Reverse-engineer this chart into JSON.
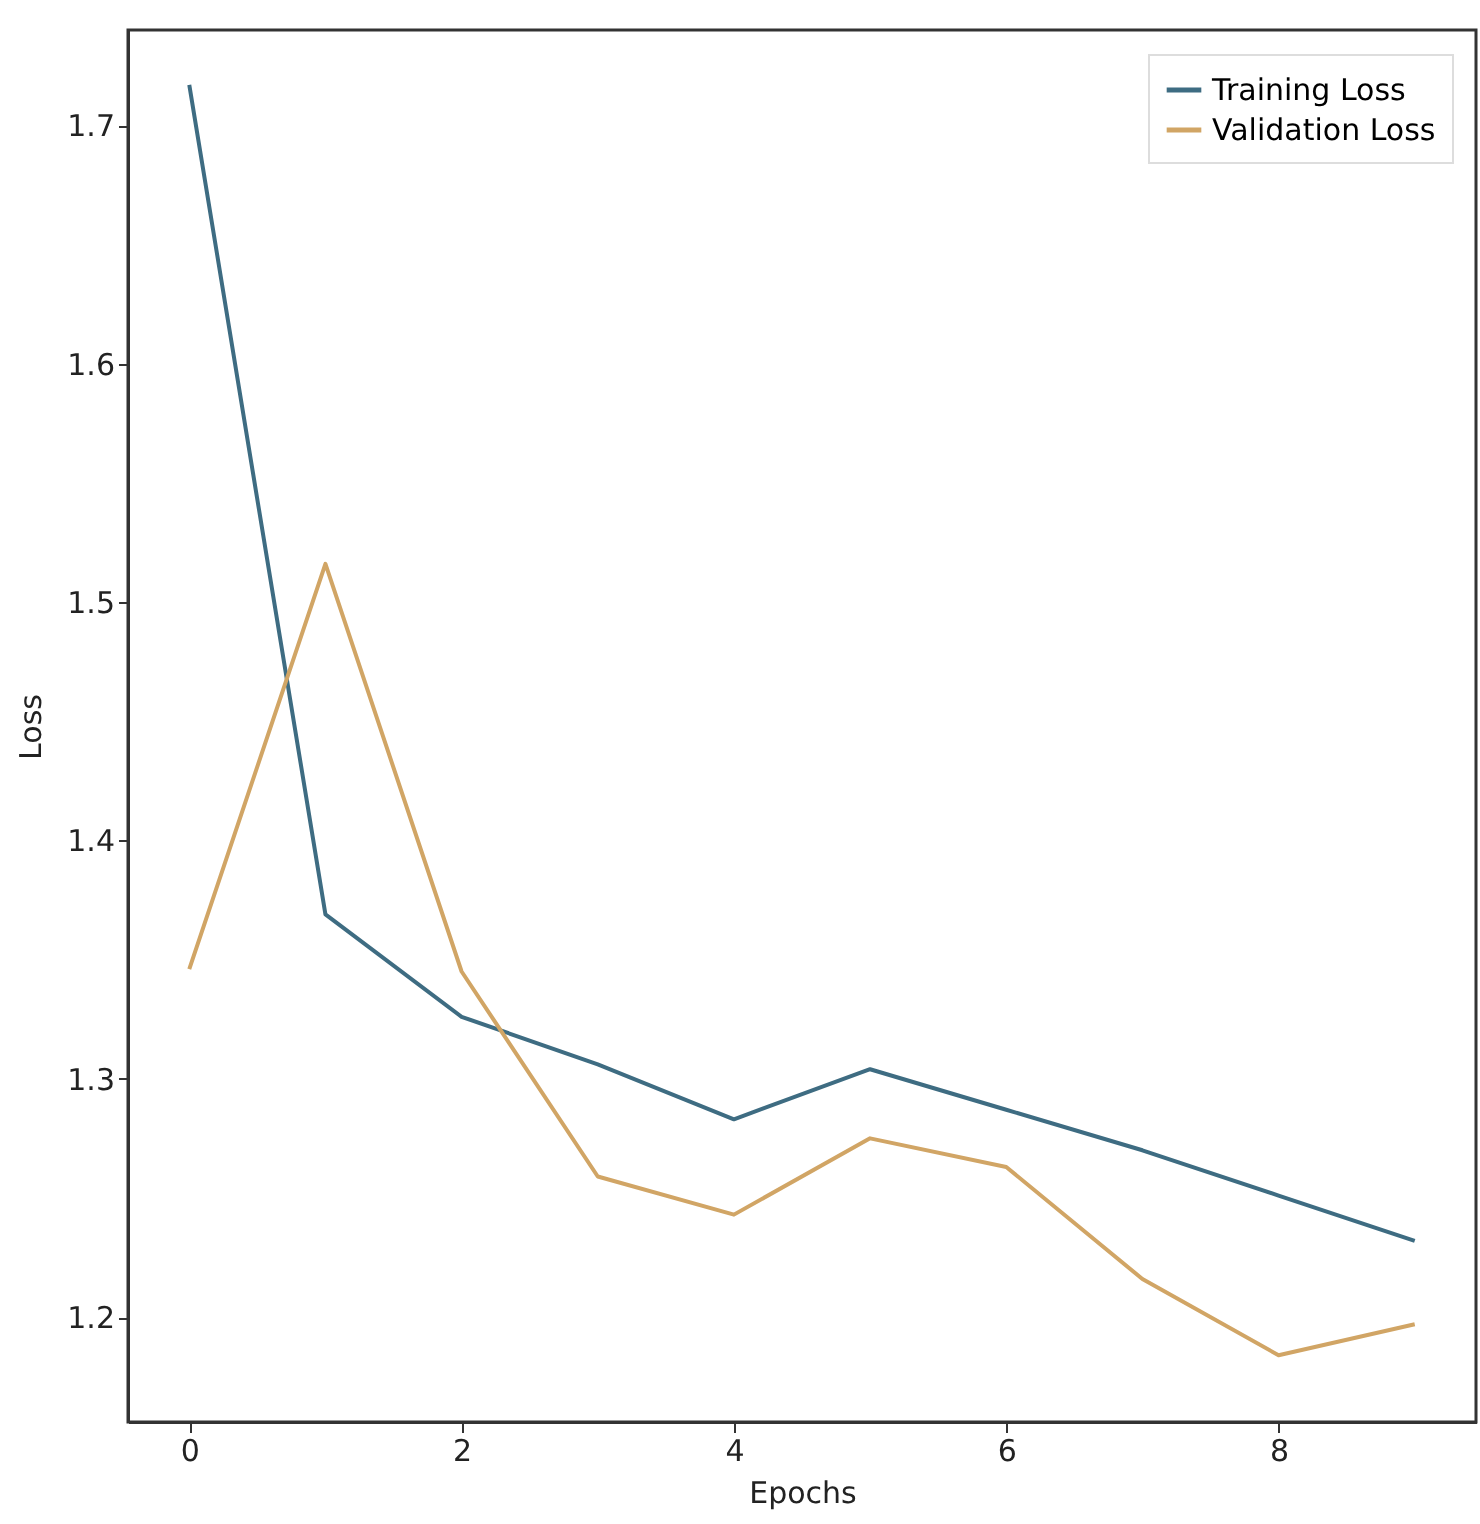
{
  "chart_data": {
    "type": "line",
    "xlabel": "Epochs",
    "ylabel": "Loss",
    "x": [
      0,
      1,
      2,
      3,
      4,
      5,
      6,
      7,
      8,
      9
    ],
    "series": [
      {
        "name": "Training Loss",
        "color": "#3e6c82",
        "values": [
          1.717,
          1.369,
          1.326,
          1.306,
          1.283,
          1.304,
          1.287,
          1.27,
          1.251,
          1.232
        ]
      },
      {
        "name": "Validation Loss",
        "color": "#d1a565",
        "values": [
          1.346,
          1.516,
          1.345,
          1.259,
          1.243,
          1.275,
          1.263,
          1.216,
          1.184,
          1.197
        ]
      }
    ],
    "xlim": [
      -0.45,
      9.45
    ],
    "xticks": [
      0,
      2,
      4,
      6,
      8
    ],
    "ylim": [
      1.156,
      1.74
    ],
    "yticks": [
      1.2,
      1.3,
      1.4,
      1.5,
      1.6,
      1.7
    ],
    "grid": false,
    "legend": "top right"
  }
}
